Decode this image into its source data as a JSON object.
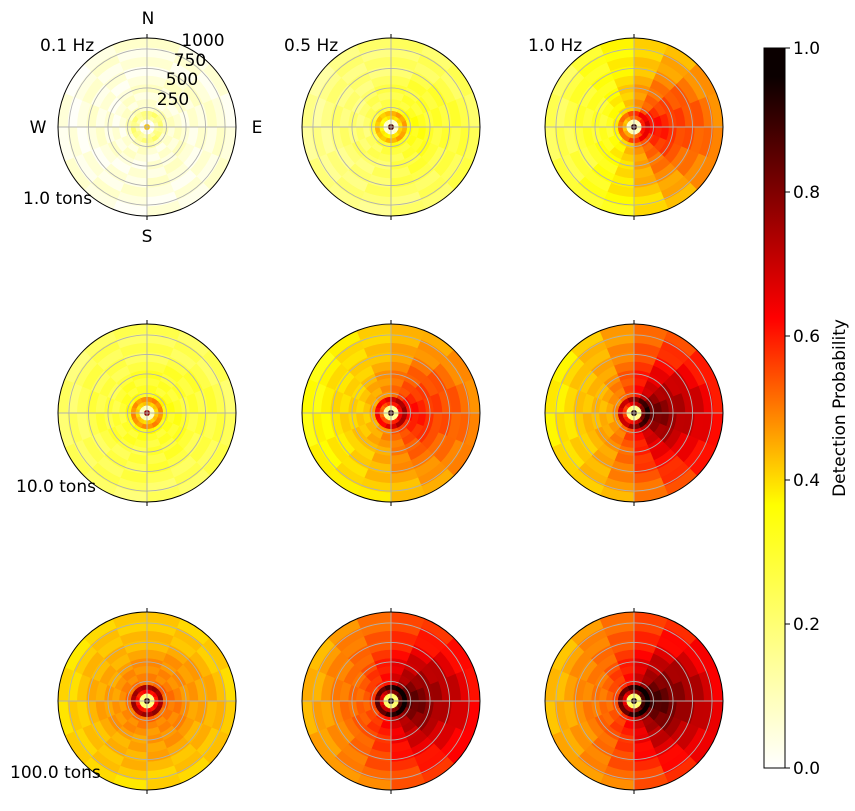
{
  "chart_data": {
    "type": "heatmap",
    "subtype": "polar-grid",
    "frequency_labels": [
      "0.1 Hz",
      "0.5 Hz",
      "1.0 Hz"
    ],
    "yield_labels": [
      "1.0 tons",
      "10.0 tons",
      "100.0 tons"
    ],
    "compass": {
      "north": "N",
      "south": "S",
      "west": "W",
      "east": "E"
    },
    "radial_ticks": [
      "250",
      "500",
      "750",
      "1000"
    ],
    "radial_values": [
      250,
      500,
      750,
      1000
    ],
    "rmax": 1140,
    "colorbar": {
      "label": "Detection Probability",
      "colormap": "hot_r",
      "range": [
        0.0,
        1.0
      ],
      "ticks": [
        "0.0",
        "0.2",
        "0.4",
        "0.6",
        "0.8",
        "1.0"
      ],
      "tick_values": [
        0.0,
        0.2,
        0.4,
        0.6,
        0.8,
        1.0
      ]
    },
    "panels": [
      {
        "yield": "1.0 tons",
        "frequency": "0.1 Hz",
        "west_level": 0.04,
        "east_level": 0.05,
        "center_level": 0.35,
        "ring_level": 0.12
      },
      {
        "yield": "1.0 tons",
        "frequency": "0.5 Hz",
        "west_level": 0.16,
        "east_level": 0.25,
        "center_level": 0.9,
        "ring_level": 0.28
      },
      {
        "yield": "1.0 tons",
        "frequency": "1.0 Hz",
        "west_level": 0.24,
        "east_level": 0.62,
        "center_level": 0.95,
        "ring_level": 0.35
      },
      {
        "yield": "10.0 tons",
        "frequency": "0.1 Hz",
        "west_level": 0.22,
        "east_level": 0.24,
        "center_level": 0.8,
        "ring_level": 0.32
      },
      {
        "yield": "10.0 tons",
        "frequency": "0.5 Hz",
        "west_level": 0.36,
        "east_level": 0.62,
        "center_level": 0.95,
        "ring_level": 0.45
      },
      {
        "yield": "10.0 tons",
        "frequency": "1.0 Hz",
        "west_level": 0.4,
        "east_level": 0.86,
        "center_level": 0.97,
        "ring_level": 0.5
      },
      {
        "yield": "100.0 tons",
        "frequency": "0.1 Hz",
        "west_level": 0.44,
        "east_level": 0.47,
        "center_level": 0.95,
        "ring_level": 0.55
      },
      {
        "yield": "100.0 tons",
        "frequency": "0.5 Hz",
        "west_level": 0.52,
        "east_level": 0.88,
        "center_level": 0.98,
        "ring_level": 0.6
      },
      {
        "yield": "100.0 tons",
        "frequency": "1.0 Hz",
        "west_level": 0.5,
        "east_level": 0.92,
        "center_level": 0.98,
        "ring_level": 0.6
      }
    ]
  }
}
